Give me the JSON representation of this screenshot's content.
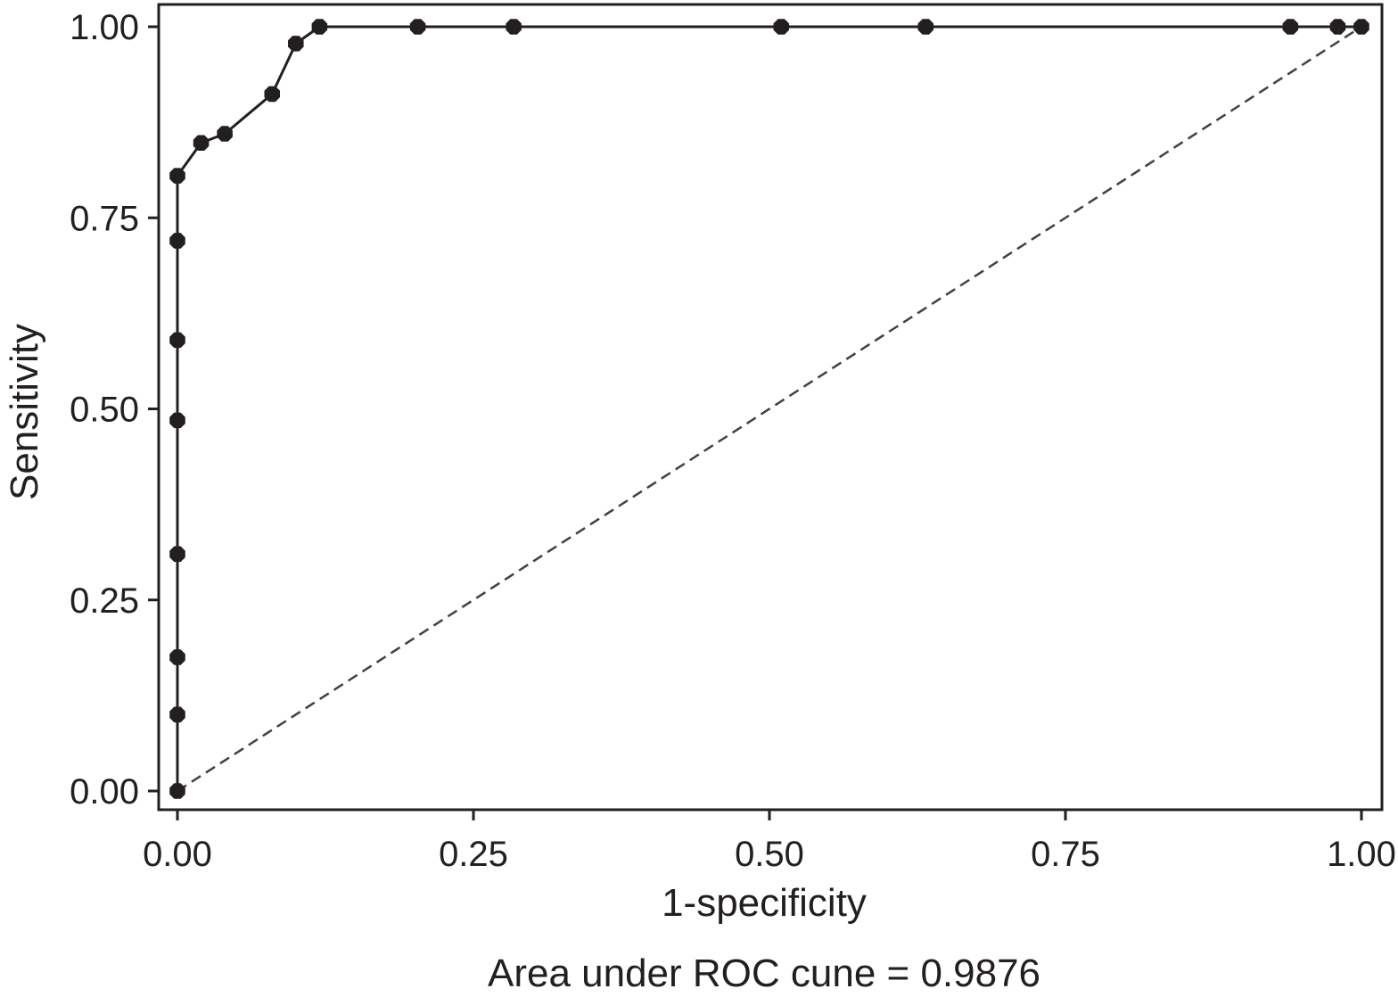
{
  "chart_data": {
    "type": "line",
    "title": "",
    "xlabel": "1-specificity",
    "ylabel": "Sensitivity",
    "xlim": [
      0,
      1
    ],
    "ylim": [
      0,
      1
    ],
    "x_ticks": [
      "0.00",
      "0.25",
      "0.50",
      "0.75",
      "1.00"
    ],
    "y_ticks": [
      "0.00",
      "0.25",
      "0.50",
      "0.75",
      "1.00"
    ],
    "x_tick_values": [
      0,
      0.25,
      0.5,
      0.75,
      1
    ],
    "y_tick_values": [
      0,
      0.25,
      0.5,
      0.75,
      1
    ],
    "grid": false,
    "series": [
      {
        "style": "solid with point markers",
        "points": [
          {
            "x": 0.0,
            "y": 0.0
          },
          {
            "x": 0.0,
            "y": 0.1
          },
          {
            "x": 0.0,
            "y": 0.175
          },
          {
            "x": 0.0,
            "y": 0.31
          },
          {
            "x": 0.0,
            "y": 0.485
          },
          {
            "x": 0.0,
            "y": 0.59
          },
          {
            "x": 0.0,
            "y": 0.72
          },
          {
            "x": 0.0,
            "y": 0.805
          },
          {
            "x": 0.02,
            "y": 0.848
          },
          {
            "x": 0.04,
            "y": 0.86
          },
          {
            "x": 0.08,
            "y": 0.912
          },
          {
            "x": 0.1,
            "y": 0.978
          },
          {
            "x": 0.12,
            "y": 1.0
          },
          {
            "x": 0.203,
            "y": 1.0
          },
          {
            "x": 0.284,
            "y": 1.0
          },
          {
            "x": 0.51,
            "y": 1.0
          },
          {
            "x": 0.632,
            "y": 1.0
          },
          {
            "x": 0.94,
            "y": 1.0
          },
          {
            "x": 0.98,
            "y": 1.0
          },
          {
            "x": 1.0,
            "y": 1.0
          }
        ]
      },
      {
        "style": "dashed reference diagonal",
        "points": [
          {
            "x": 0.0,
            "y": 0.0
          },
          {
            "x": 1.0,
            "y": 1.0
          }
        ]
      }
    ],
    "annotation": "Area under ROC cune = 0.9876"
  }
}
